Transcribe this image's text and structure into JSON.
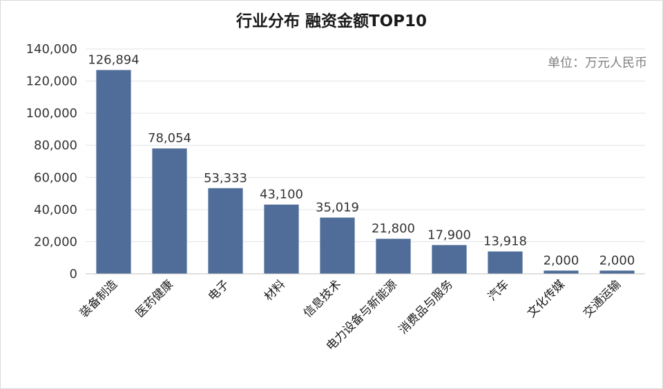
{
  "chart_data": {
    "type": "bar",
    "title": "行业分布 融资金额TOP10",
    "unit_note": "单位：万元人民币",
    "categories": [
      "装备制造",
      "医药健康",
      "电子",
      "材料",
      "信息技术",
      "电力设备与新能源",
      "消费品与服务",
      "汽车",
      "文化传媒",
      "交通运输"
    ],
    "values": [
      126894,
      78054,
      53333,
      43100,
      35019,
      21800,
      17900,
      13918,
      2000,
      2000
    ],
    "data_labels": [
      "126,894",
      "78,054",
      "53,333",
      "43,100",
      "35,019",
      "21,800",
      "17,900",
      "13,918",
      "2,000",
      "2,000"
    ],
    "y_ticks": [
      "0",
      "20,000",
      "40,000",
      "60,000",
      "80,000",
      "100,000",
      "120,000",
      "140,000"
    ],
    "ylim": [
      0,
      140000
    ],
    "xlabel": "",
    "ylabel": "",
    "grid": true,
    "bar_color": "#4f6d98"
  }
}
